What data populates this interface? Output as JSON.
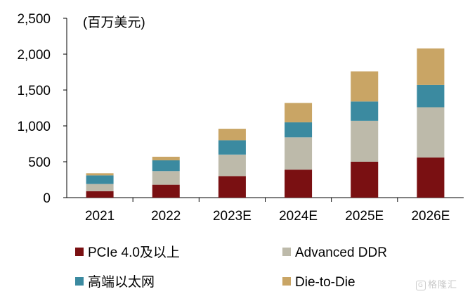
{
  "chart_data": {
    "type": "bar",
    "stacked": true,
    "unit_label": "(百万美元)",
    "categories": [
      "2021",
      "2022",
      "2023E",
      "2024E",
      "2025E",
      "2026E"
    ],
    "series": [
      {
        "name": "PCIe 4.0及以上",
        "color": "#7a1012",
        "values": [
          90,
          180,
          300,
          390,
          500,
          560
        ]
      },
      {
        "name": "Advanced DDR",
        "color": "#bdbaaa",
        "values": [
          100,
          190,
          300,
          450,
          570,
          700
        ]
      },
      {
        "name": "高端以太网",
        "color": "#3b8aa0",
        "values": [
          120,
          150,
          200,
          210,
          270,
          310
        ]
      },
      {
        "name": "Die-to-Die",
        "color": "#c9a565",
        "values": [
          30,
          50,
          160,
          270,
          420,
          510
        ]
      }
    ],
    "yticks": [
      "0",
      "500",
      "1,000",
      "1,500",
      "2,000",
      "2,500"
    ],
    "ylim": [
      0,
      2500
    ],
    "grid": false,
    "legend_position": "bottom"
  },
  "watermark": {
    "text": "格隆汇",
    "icon": "G"
  }
}
